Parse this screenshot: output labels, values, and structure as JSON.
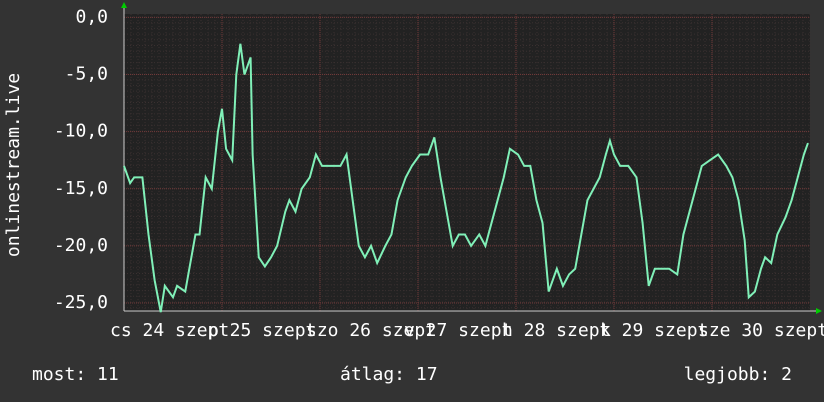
{
  "chart_data": {
    "type": "line",
    "y_label": "onlinestream.live",
    "ylim": [
      -25.7,
      0.3
    ],
    "yticks": [
      {
        "value": 0,
        "label": "0,0"
      },
      {
        "value": -5,
        "label": "-5,0"
      },
      {
        "value": -10,
        "label": "-10,0"
      },
      {
        "value": -15,
        "label": "-15,0"
      },
      {
        "value": -20,
        "label": "-20,0"
      },
      {
        "value": -25,
        "label": "-25,0"
      }
    ],
    "xlim": [
      0,
      168
    ],
    "xticks": [
      {
        "value": 0,
        "label": "cs 24 szept"
      },
      {
        "value": 24,
        "label": "p 25 szept"
      },
      {
        "value": 48,
        "label": "szo 26 szept"
      },
      {
        "value": 72,
        "label": "v 27 szept"
      },
      {
        "value": 96,
        "label": "h 28 szept"
      },
      {
        "value": 120,
        "label": "k 29 szept"
      },
      {
        "value": 144,
        "label": "sze 30 szept"
      }
    ],
    "grid": true,
    "series": [
      {
        "name": "onlinestream.live",
        "color": "#80f0b8",
        "x": [
          0,
          1.5,
          2.5,
          4.5,
          6,
          7.5,
          9,
          10,
          12,
          13,
          15,
          16,
          17.5,
          18.5,
          20,
          21.5,
          23,
          24,
          25,
          26.5,
          27.5,
          28.5,
          29.5,
          31,
          31.5,
          33,
          34.5,
          36,
          37.5,
          39.5,
          40.5,
          42,
          43.5,
          45.5,
          47,
          48.5,
          50.5,
          53,
          54.5,
          56,
          57.5,
          59,
          60.5,
          62,
          64,
          65.5,
          67,
          69,
          70.5,
          72.5,
          74.5,
          76,
          77.5,
          79,
          80.5,
          82,
          83.5,
          85,
          87,
          88.5,
          90,
          91.5,
          93,
          94.5,
          96.5,
          98,
          99.5,
          101,
          102.5,
          104,
          106,
          107.5,
          109,
          110.5,
          112,
          113.5,
          115,
          116.5,
          118,
          119,
          120,
          121.5,
          123.5,
          125.5,
          127,
          128.5,
          130,
          131.5,
          133.5,
          135.5,
          137,
          138.5,
          140,
          141.5,
          143.5,
          145.5,
          147.5,
          149,
          150.5,
          152,
          153,
          154.5,
          156,
          157,
          158.5,
          160,
          162,
          163.5,
          165,
          166.5,
          167.5
        ],
        "values": [
          -13,
          -14.5,
          -14,
          -14,
          -19,
          -23,
          -25.8,
          -23.5,
          -24.5,
          -23.5,
          -24,
          -22,
          -19,
          -19,
          -14,
          -15,
          -10,
          -8,
          -11.5,
          -12.5,
          -5,
          -2.3,
          -5,
          -3.5,
          -12,
          -21,
          -21.8,
          -21,
          -20,
          -17,
          -16,
          -17,
          -15,
          -14,
          -12,
          -13,
          -13,
          -13,
          -12,
          -16,
          -20,
          -21,
          -20,
          -21.5,
          -20,
          -19,
          -16,
          -14,
          -13,
          -12,
          -12,
          -10.5,
          -14,
          -17,
          -20,
          -19,
          -19,
          -20,
          -19,
          -20,
          -18,
          -16,
          -14,
          -11.5,
          -12,
          -13,
          -13,
          -16,
          -18,
          -24,
          -22,
          -23.5,
          -22.5,
          -22,
          -19,
          -16,
          -15,
          -14,
          -12,
          -10.8,
          -12,
          -13,
          -13,
          -14,
          -18,
          -23.5,
          -22,
          -22,
          -22,
          -22.5,
          -19,
          -17,
          -15,
          -13,
          -12.5,
          -12,
          -13,
          -14,
          -16,
          -19.5,
          -24.5,
          -24,
          -22,
          -21,
          -21.5,
          -19,
          -17.5,
          -16,
          -14,
          -12,
          -11
        ]
      }
    ],
    "stats": [
      "most: 11",
      "átlag: 17",
      "legjobb: 2"
    ]
  }
}
